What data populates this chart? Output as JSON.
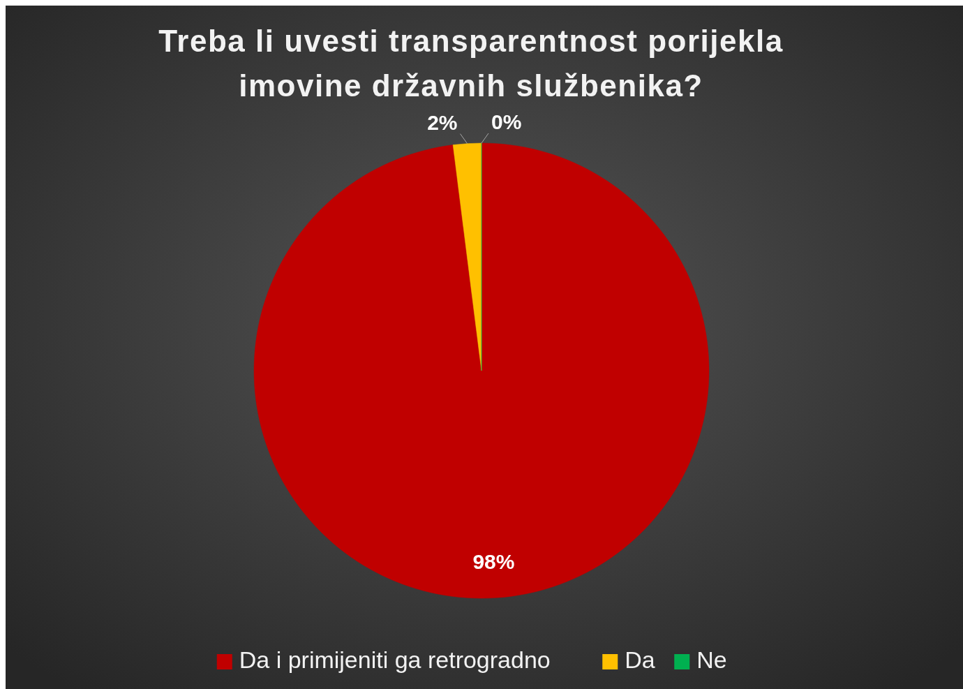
{
  "chart_data": {
    "type": "pie",
    "title": "Treba li uvesti transparentnost porijekla imovine državnih službenika?",
    "categories": [
      "Da i primijeniti ga retrogradno",
      "Da",
      "Ne"
    ],
    "values": [
      98,
      2,
      0
    ],
    "colors": [
      "#c00000",
      "#ffc000",
      "#00b050"
    ],
    "value_labels": [
      "98%",
      "2%",
      "0%"
    ],
    "legend": "bottom"
  }
}
